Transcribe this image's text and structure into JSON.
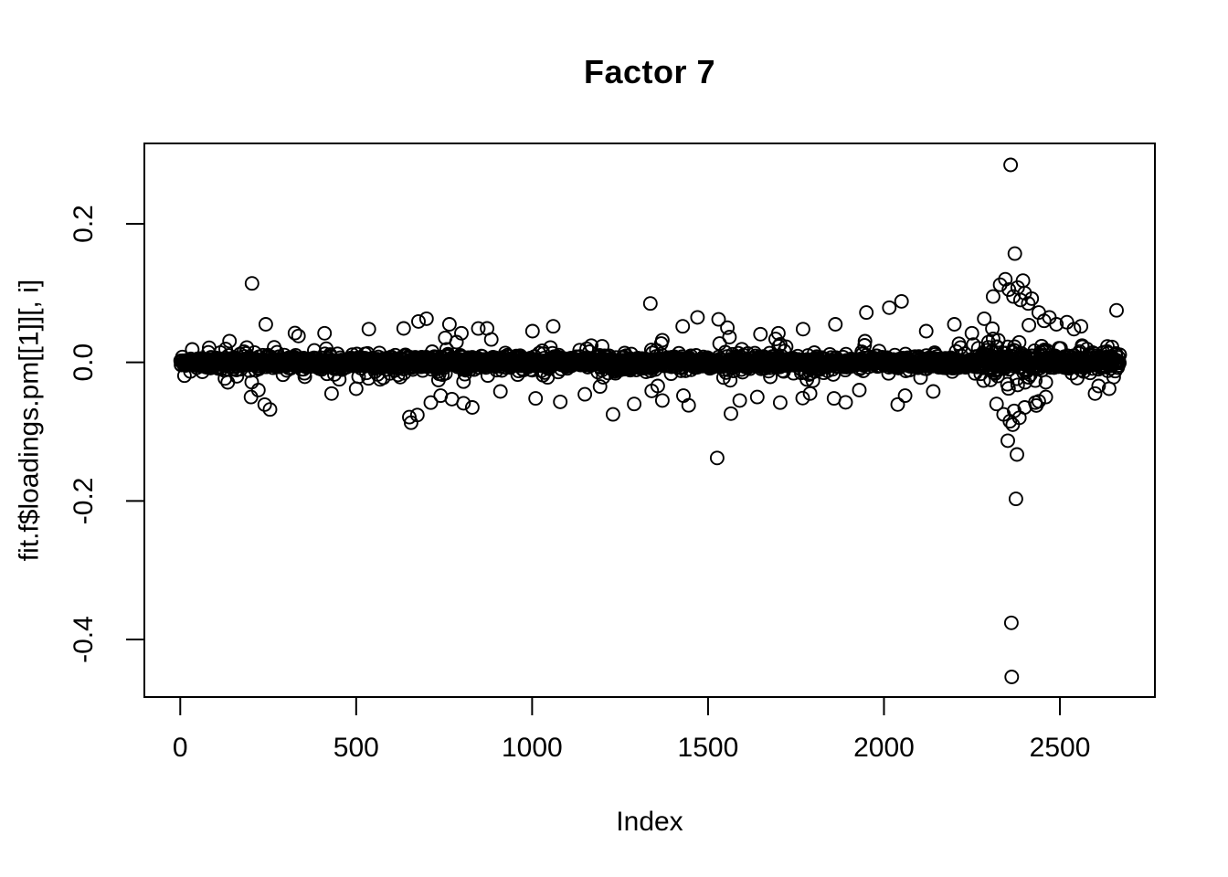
{
  "page": {
    "background_color": "#ffffff",
    "foreground_color": "#000000"
  },
  "chart_data": {
    "type": "scatter",
    "title": "Factor 7",
    "xlabel": "Index",
    "ylabel": "fit.f$loadings.pm[[1]][, i]",
    "n_points": 2670,
    "xlim": [
      -102,
      2770
    ],
    "ylim": [
      -0.483,
      0.316
    ],
    "x_ticks": {
      "values": [
        0,
        500,
        1000,
        1500,
        2000,
        2500
      ],
      "labels": [
        "0",
        "500",
        "1000",
        "1500",
        "2000",
        "2500"
      ]
    },
    "y_ticks": {
      "values": [
        0.2,
        0,
        -0.2,
        -0.4
      ],
      "labels": [
        "0.2",
        "0.0",
        "-0.2",
        "-0.4"
      ]
    },
    "grid": false,
    "legend": null,
    "marker": {
      "shape": "open-circle",
      "radius_px": 7,
      "stroke_color": "#000000",
      "stroke_width_px": 1.9,
      "fill": "none"
    },
    "series_summary": "Dense horizontal band of ~2670 posterior-mean factor loadings near 0 with sparse outliers; an extra-dispersed cluster near index 2280-2460 including extremes at 0.285, -0.376 and -0.454",
    "distribution": {
      "seed": 1337,
      "n": 2670,
      "mixture": [
        {
          "p": 0.7,
          "sd": 0.0035
        },
        {
          "p": 0.92,
          "sd": 0.008
        },
        {
          "p": 0.98,
          "sd": 0.016
        },
        {
          "p": 1.0,
          "sd": 0.03
        }
      ],
      "clamp": 0.095,
      "regions": [
        {
          "from": 2280,
          "to": 2460,
          "mult": 2.0,
          "clamp": 0.13
        },
        {
          "from": 2470,
          "to": 2670,
          "mult": 1.4,
          "clamp": 0.1
        },
        {
          "from": 560,
          "to": 860,
          "mult": 1.3,
          "clamp": 0.1
        },
        {
          "from": 1190,
          "to": 1330,
          "mult": 1.2,
          "clamp": 0.1
        }
      ]
    },
    "outliers": [
      [
        204,
        0.114
      ],
      [
        243,
        0.055
      ],
      [
        336,
        0.038
      ],
      [
        410,
        0.042
      ],
      [
        536,
        0.048
      ],
      [
        635,
        0.049
      ],
      [
        677,
        0.059
      ],
      [
        700,
        0.063
      ],
      [
        765,
        0.055
      ],
      [
        799,
        0.042
      ],
      [
        872,
        0.049
      ],
      [
        1001,
        0.045
      ],
      [
        1060,
        0.052
      ],
      [
        1336,
        0.085
      ],
      [
        1428,
        0.052
      ],
      [
        1470,
        0.065
      ],
      [
        1530,
        0.062
      ],
      [
        1555,
        0.05
      ],
      [
        1700,
        0.042
      ],
      [
        1770,
        0.048
      ],
      [
        1862,
        0.055
      ],
      [
        1950,
        0.072
      ],
      [
        2015,
        0.079
      ],
      [
        2050,
        0.088
      ],
      [
        2120,
        0.045
      ],
      [
        2200,
        0.055
      ],
      [
        2250,
        0.042
      ],
      [
        2310,
        0.095
      ],
      [
        2330,
        0.112
      ],
      [
        2345,
        0.12
      ],
      [
        2355,
        0.105
      ],
      [
        2360,
        0.285
      ],
      [
        2368,
        0.095
      ],
      [
        2372,
        0.157
      ],
      [
        2380,
        0.108
      ],
      [
        2388,
        0.09
      ],
      [
        2395,
        0.118
      ],
      [
        2400,
        0.1
      ],
      [
        2410,
        0.085
      ],
      [
        2420,
        0.092
      ],
      [
        2440,
        0.072
      ],
      [
        2455,
        0.06
      ],
      [
        2470,
        0.065
      ],
      [
        2490,
        0.055
      ],
      [
        2520,
        0.058
      ],
      [
        2540,
        0.048
      ],
      [
        2560,
        0.052
      ],
      [
        201,
        -0.05
      ],
      [
        222,
        -0.04
      ],
      [
        240,
        -0.061
      ],
      [
        255,
        -0.068
      ],
      [
        430,
        -0.045
      ],
      [
        500,
        -0.038
      ],
      [
        651,
        -0.079
      ],
      [
        656,
        -0.087
      ],
      [
        674,
        -0.076
      ],
      [
        712,
        -0.058
      ],
      [
        740,
        -0.048
      ],
      [
        772,
        -0.053
      ],
      [
        805,
        -0.059
      ],
      [
        830,
        -0.065
      ],
      [
        910,
        -0.042
      ],
      [
        1010,
        -0.052
      ],
      [
        1080,
        -0.057
      ],
      [
        1150,
        -0.046
      ],
      [
        1230,
        -0.075
      ],
      [
        1290,
        -0.06
      ],
      [
        1370,
        -0.055
      ],
      [
        1430,
        -0.048
      ],
      [
        1445,
        -0.062
      ],
      [
        1526,
        -0.138
      ],
      [
        1590,
        -0.055
      ],
      [
        1640,
        -0.05
      ],
      [
        1705,
        -0.058
      ],
      [
        1790,
        -0.045
      ],
      [
        1858,
        -0.052
      ],
      [
        1930,
        -0.04
      ],
      [
        2060,
        -0.048
      ],
      [
        2140,
        -0.042
      ],
      [
        2320,
        -0.06
      ],
      [
        2340,
        -0.075
      ],
      [
        2352,
        -0.113
      ],
      [
        2358,
        -0.085
      ],
      [
        2362,
        -0.376
      ],
      [
        2363,
        -0.454
      ],
      [
        2366,
        -0.09
      ],
      [
        2370,
        -0.07
      ],
      [
        2375,
        -0.197
      ],
      [
        2378,
        -0.133
      ],
      [
        2385,
        -0.08
      ],
      [
        2400,
        -0.065
      ],
      [
        2430,
        -0.058
      ],
      [
        2460,
        -0.05
      ],
      [
        2600,
        -0.045
      ],
      [
        2640,
        -0.038
      ]
    ]
  }
}
